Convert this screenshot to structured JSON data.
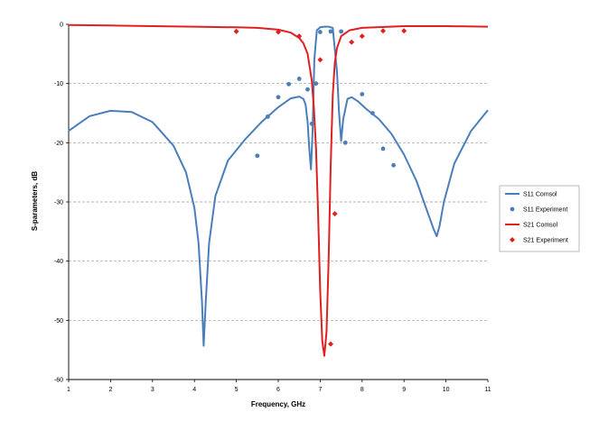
{
  "chart_data": {
    "type": "line",
    "title": "",
    "xlabel": "Frequency, GHz",
    "ylabel": "S-parameters, dB",
    "xlim": [
      1,
      11
    ],
    "ylim": [
      -60,
      0
    ],
    "x_ticks": [
      "1",
      "2",
      "3",
      "4",
      "5",
      "6",
      "7",
      "8",
      "9",
      "10",
      "11"
    ],
    "y_ticks": [
      "0",
      "-10",
      "-20",
      "-30",
      "-40",
      "-50",
      "-60"
    ],
    "grid": "horizontal dashed",
    "legend_position": "right",
    "series": [
      {
        "name": "S11 Comsol",
        "kind": "line",
        "color": "#4a7ebb",
        "x": [
          1.0,
          1.5,
          2.0,
          2.5,
          3.0,
          3.5,
          3.8,
          4.0,
          4.1,
          4.18,
          4.22,
          4.27,
          4.35,
          4.5,
          4.8,
          5.2,
          5.6,
          6.0,
          6.3,
          6.5,
          6.6,
          6.65,
          6.7,
          6.74,
          6.78,
          6.82,
          6.86,
          6.92,
          7.0,
          7.1,
          7.2,
          7.3,
          7.4,
          7.45,
          7.5,
          7.55,
          7.65,
          7.75,
          7.9,
          8.1,
          8.4,
          8.7,
          9.0,
          9.3,
          9.55,
          9.7,
          9.78,
          9.85,
          9.95,
          10.2,
          10.6,
          11.0
        ],
        "y": [
          -18.0,
          -15.5,
          -14.6,
          -14.8,
          -16.5,
          -20.5,
          -25.0,
          -31.0,
          -37.0,
          -47.0,
          -54.3,
          -47.0,
          -37.0,
          -29.0,
          -23.0,
          -19.5,
          -16.5,
          -14.0,
          -12.5,
          -12.2,
          -12.6,
          -13.5,
          -16.5,
          -21.0,
          -24.5,
          -18.0,
          -6.0,
          -1.0,
          -0.5,
          -0.4,
          -0.4,
          -0.6,
          -8.0,
          -15.0,
          -19.7,
          -16.0,
          -12.6,
          -12.3,
          -13.0,
          -14.3,
          -16.0,
          -18.5,
          -22.0,
          -26.5,
          -31.5,
          -34.5,
          -35.8,
          -34.0,
          -30.0,
          -23.5,
          -18.0,
          -14.5
        ]
      },
      {
        "name": "S11 Experiment",
        "kind": "scatter",
        "color": "#4a7ebb",
        "x": [
          5.5,
          5.75,
          6.0,
          6.25,
          6.5,
          6.7,
          6.8,
          6.9,
          7.0,
          7.25,
          7.5,
          7.6,
          8.0,
          8.25,
          8.5,
          8.75
        ],
        "y": [
          -22.2,
          -15.6,
          -12.3,
          -10.1,
          -9.2,
          -11.0,
          -16.8,
          -10.0,
          -1.3,
          -1.2,
          -1.2,
          -20.0,
          -11.8,
          -15.0,
          -21.0,
          -23.8
        ]
      },
      {
        "name": "S21 Comsol",
        "kind": "line",
        "color": "#e02020",
        "x": [
          1.0,
          2.0,
          3.0,
          4.0,
          5.0,
          5.5,
          6.0,
          6.3,
          6.5,
          6.6,
          6.7,
          6.8,
          6.85,
          6.9,
          6.95,
          7.0,
          7.05,
          7.1,
          7.15,
          7.2,
          7.25,
          7.3,
          7.35,
          7.4,
          7.5,
          7.7,
          8.0,
          9.0,
          10.0,
          11.0
        ],
        "y": [
          -0.1,
          -0.2,
          -0.3,
          -0.4,
          -0.5,
          -0.6,
          -0.9,
          -1.4,
          -2.3,
          -3.2,
          -5.0,
          -9.5,
          -14.0,
          -21.0,
          -32.0,
          -45.0,
          -53.5,
          -56.0,
          -52.0,
          -40.0,
          -24.0,
          -12.0,
          -6.5,
          -4.0,
          -2.0,
          -1.0,
          -0.6,
          -0.3,
          -0.3,
          -0.4
        ]
      },
      {
        "name": "S21 Experiment",
        "kind": "scatter",
        "color": "#e02020",
        "x": [
          5.0,
          6.0,
          6.5,
          7.0,
          7.25,
          7.35,
          7.75,
          8.0,
          8.5,
          9.0
        ],
        "y": [
          -1.2,
          -1.3,
          -2.0,
          -6.0,
          -54.0,
          -32.0,
          -3.0,
          -2.0,
          -1.1,
          -1.1
        ]
      }
    ]
  }
}
